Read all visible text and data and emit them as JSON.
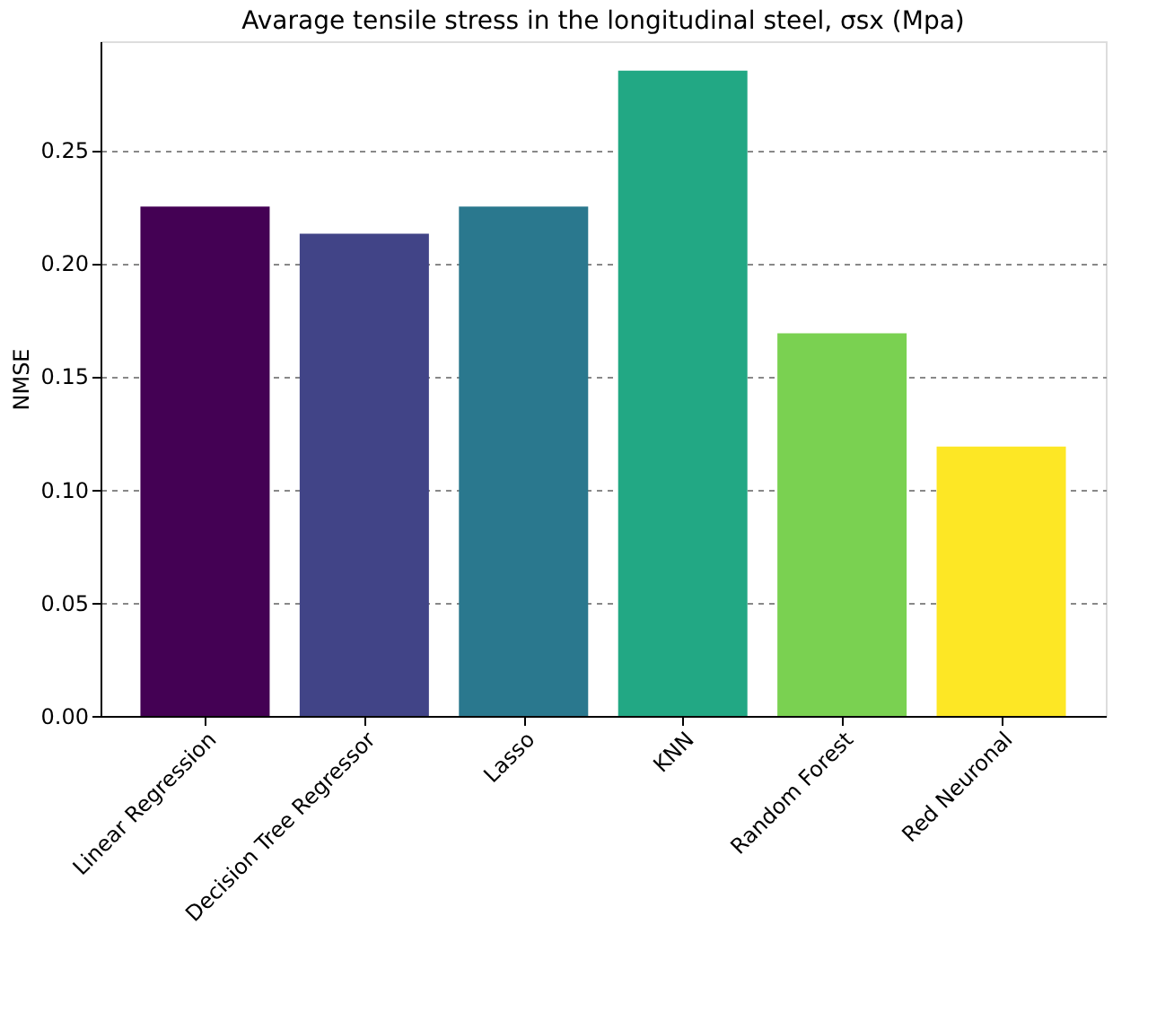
{
  "chart_data": {
    "type": "bar",
    "title": "Avarage tensile stress in the longitudinal steel, σsx (Mpa)",
    "ylabel": "NMSE",
    "categories": [
      "Linear Regression",
      "Decision Tree Regressor",
      "Lasso",
      "KNN",
      "Random Forest",
      "Red Neuronal"
    ],
    "values": [
      0.225,
      0.213,
      0.225,
      0.285,
      0.169,
      0.119
    ],
    "colors": [
      "#440154",
      "#414487",
      "#2a788e",
      "#22a884",
      "#7ad151",
      "#fde725"
    ],
    "ylim": [
      0,
      0.298
    ],
    "yticks": [
      {
        "value": 0,
        "label": "0.00"
      },
      0.05,
      {
        "value": 0.1,
        "label": "0.10"
      },
      0.15,
      {
        "value": 0.2,
        "label": "0.20"
      },
      0.25
    ],
    "grid": "y"
  }
}
